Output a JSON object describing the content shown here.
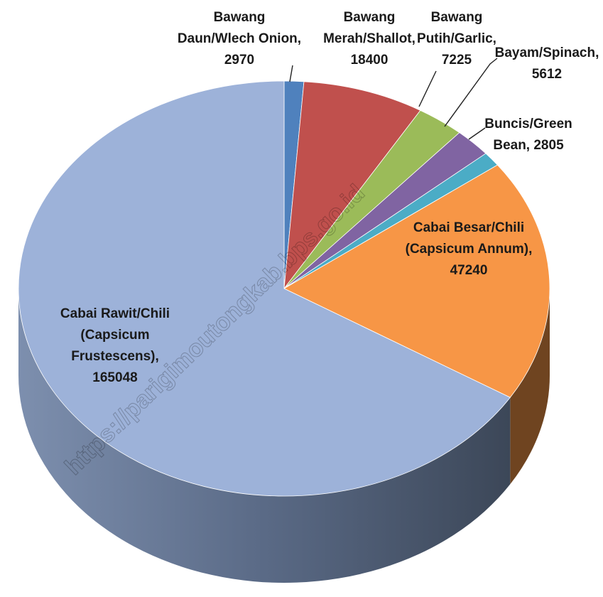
{
  "chart_data": {
    "type": "pie",
    "title": "",
    "slices": [
      {
        "label": "Bawang Daun/Wlech Onion",
        "value": 2970,
        "color": "#4F81BD",
        "label_lines": [
          "Bawang",
          "Daun/Wlech Onion,",
          "2970"
        ]
      },
      {
        "label": "Bawang Merah/Shallot",
        "value": 18400,
        "color": "#C0504D",
        "label_lines": [
          "Bawang",
          "Merah/Shallot,",
          "18400"
        ]
      },
      {
        "label": "Bawang Putih/Garlic",
        "value": 7225,
        "color": "#9BBB59",
        "label_lines": [
          "Bawang",
          "Putih/Garlic,",
          "7225"
        ]
      },
      {
        "label": "Bayam/Spinach",
        "value": 5612,
        "color": "#8064A2",
        "label_lines": [
          "Bayam/Spinach,",
          "5612"
        ]
      },
      {
        "label": "Buncis/Green Bean",
        "value": 2805,
        "color": "#4BACC6",
        "label_lines": [
          "Buncis/Green",
          "Bean, 2805"
        ]
      },
      {
        "label": "Cabai Besar/Chili (Capsicum Annum)",
        "value": 47240,
        "color": "#F79646",
        "label_lines": [
          "Cabai Besar/Chili",
          "(Capsicum Annum),",
          "47240"
        ]
      },
      {
        "label": "Cabai Rawit/Chili (Capsicum Frustescens)",
        "value": 165048,
        "color": "#9DB2D9",
        "label_lines": [
          "Cabai Rawit/Chili",
          "(Capsicum",
          "Frustescens),",
          "165048"
        ]
      }
    ]
  },
  "watermark": "https://parigimoutongkab.bps.go.id"
}
